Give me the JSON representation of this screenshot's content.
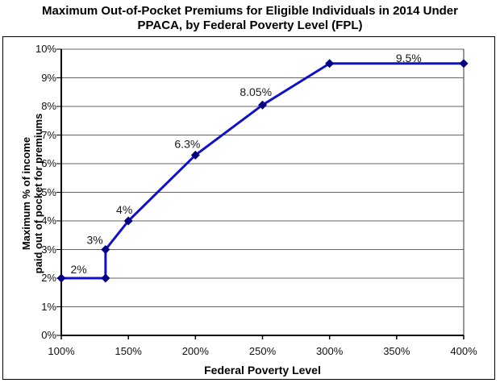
{
  "chart_data": {
    "type": "line",
    "title": "Maximum Out-of-Pocket Premiums for Eligible Individuals in 2014 Under PPACA, by Federal Poverty Level (FPL)",
    "title_lines": [
      "Maximum Out-of-Pocket Premiums for Eligible Individuals in 2014 Under",
      "PPACA, by Federal Poverty Level (FPL)"
    ],
    "xlabel": "Federal Poverty Level",
    "ylabel": "Maximum % of income paid out of pocket for premiums",
    "ylabel_lines": [
      "Maximum % of income",
      "paid out of pocket for premiums"
    ],
    "xlim": [
      100,
      400
    ],
    "ylim": [
      0,
      10
    ],
    "grid": true,
    "legend": "none",
    "x_ticks": [
      "100%",
      "150%",
      "200%",
      "250%",
      "300%",
      "350%",
      "400%"
    ],
    "y_ticks": [
      "0%",
      "1%",
      "2%",
      "3%",
      "4%",
      "5%",
      "6%",
      "7%",
      "8%",
      "9%",
      "10%"
    ],
    "series": [
      {
        "line_color": "#1010CC",
        "marker": "diamond",
        "marker_color": "#000080",
        "points": [
          {
            "x": 100,
            "y": 2
          },
          {
            "x": 133,
            "y": 2
          },
          {
            "x": 133,
            "y": 3
          },
          {
            "x": 150,
            "y": 4
          },
          {
            "x": 200,
            "y": 6.3
          },
          {
            "x": 250,
            "y": 8.05
          },
          {
            "x": 300,
            "y": 9.5
          },
          {
            "x": 400,
            "y": 9.5
          }
        ]
      }
    ],
    "data_labels": [
      {
        "text": "2%",
        "x": 113,
        "y": 2,
        "dy": -11
      },
      {
        "text": "3%",
        "x": 125,
        "y": 3,
        "dy": -12
      },
      {
        "text": "4%",
        "x": 147,
        "y": 4,
        "dy": -14
      },
      {
        "text": "6.3%",
        "x": 194,
        "y": 6.3,
        "dy": -14
      },
      {
        "text": "8.05%",
        "x": 245,
        "y": 8.05,
        "dy": -16
      },
      {
        "text": "9.5%",
        "x": 359,
        "y": 9.5,
        "dy": -7
      }
    ],
    "colors": {
      "grid": "#666666",
      "axis": "#000000",
      "text": "#1a1a1a",
      "frame": "#333333"
    }
  }
}
